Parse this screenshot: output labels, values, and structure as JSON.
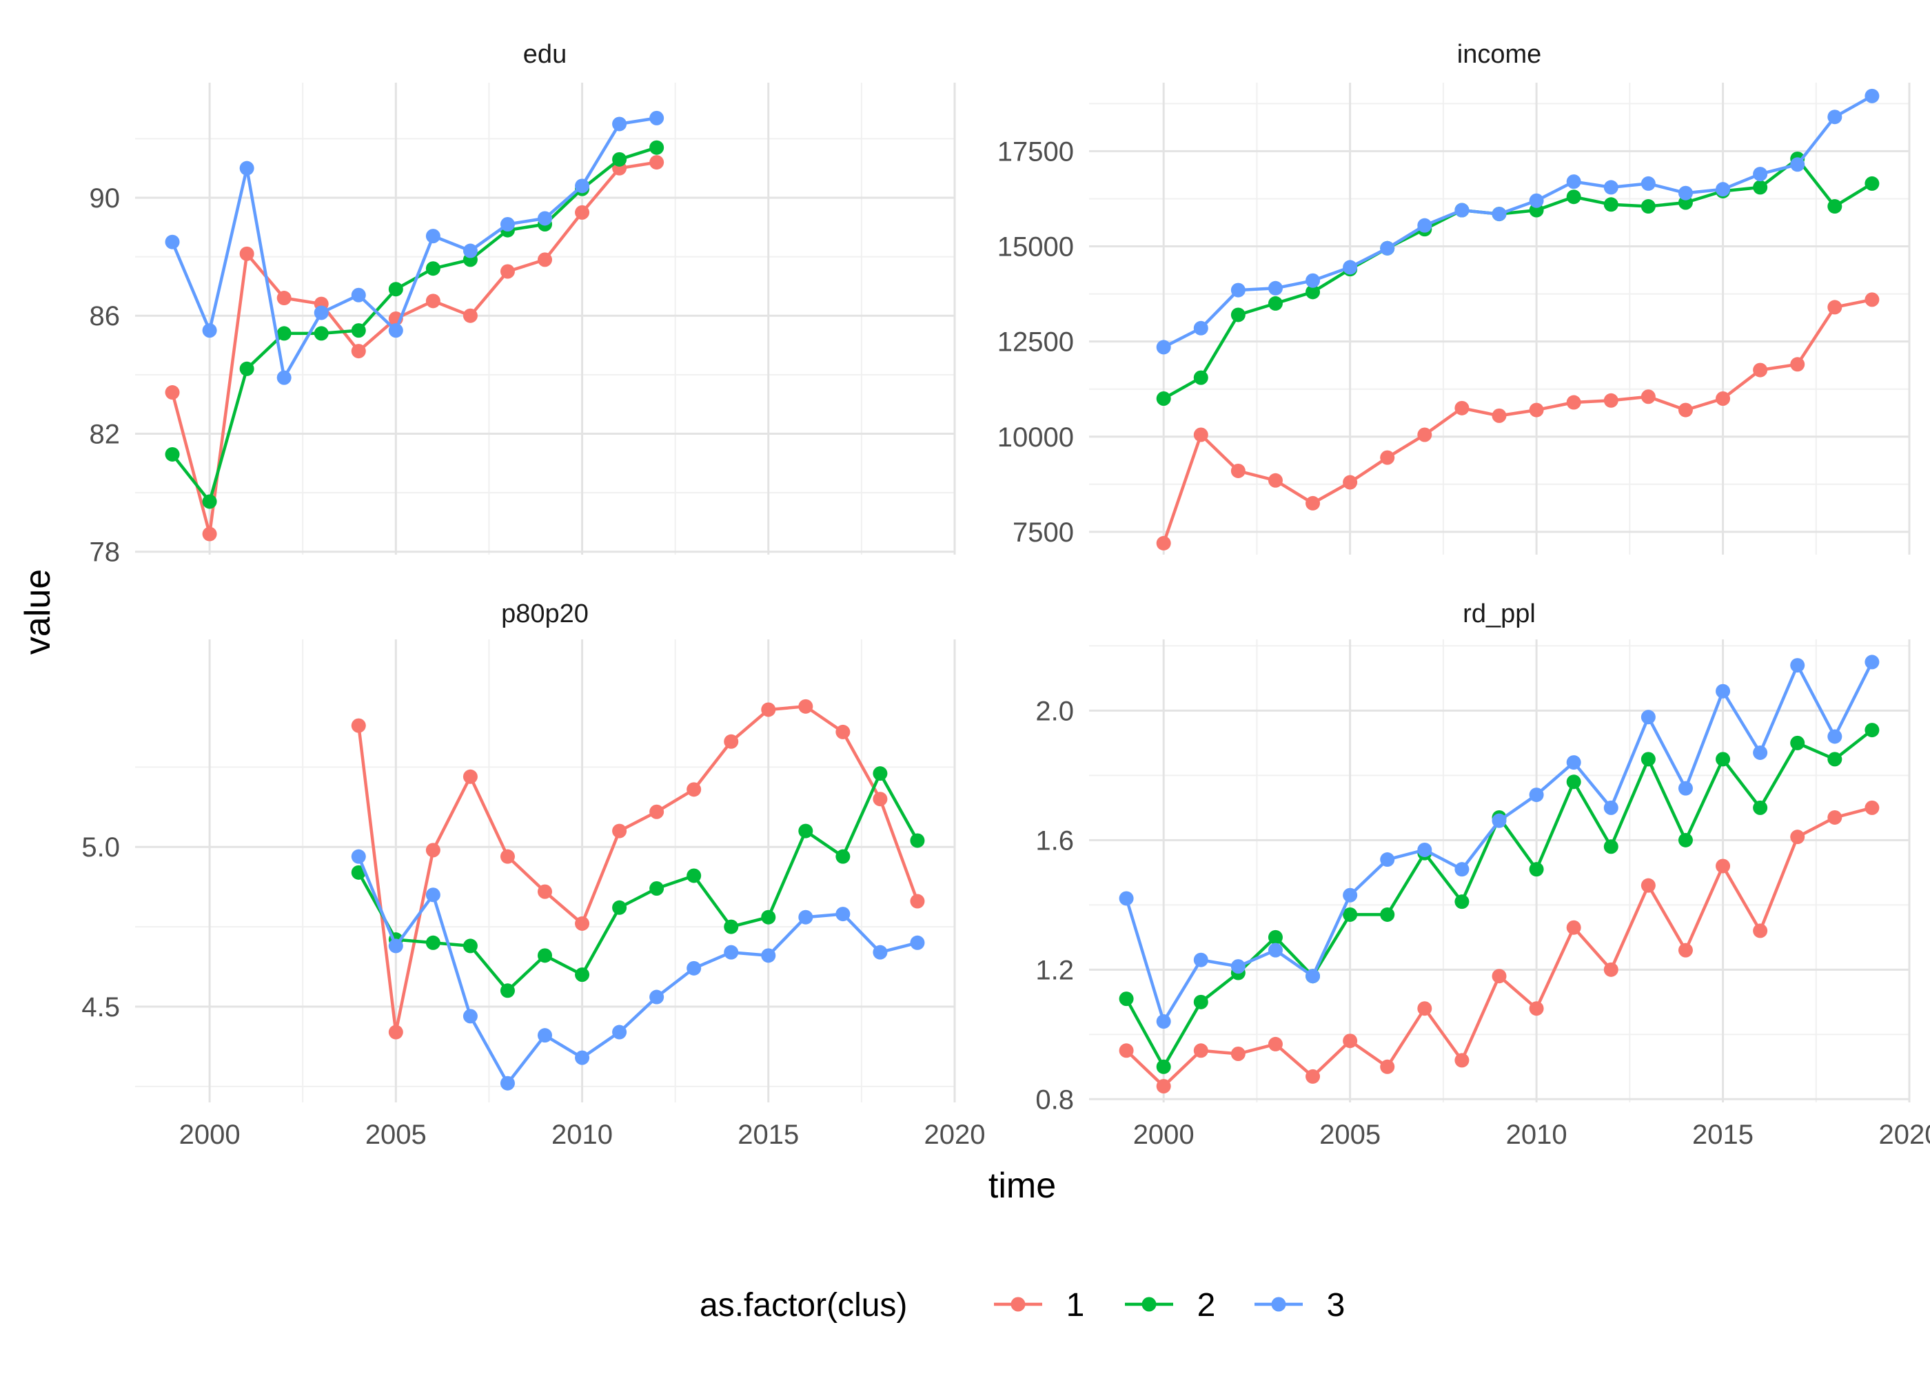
{
  "chart_data": {
    "type": "line",
    "facet_layout": "2x2",
    "xlabel": "time",
    "ylabel": "value",
    "xlim": [
      1998,
      2020
    ],
    "x_ticks": [
      2000,
      2005,
      2010,
      2015,
      2020
    ],
    "x_tick_labels": [
      "2000",
      "2005",
      "2010",
      "2015",
      "2020"
    ],
    "grid": true,
    "legend": {
      "title": "as.factor(clus)",
      "position": "bottom",
      "entries": [
        {
          "label": "1",
          "color": "#F8766D"
        },
        {
          "label": "2",
          "color": "#00BA38"
        },
        {
          "label": "3",
          "color": "#619CFF"
        }
      ]
    },
    "panels": [
      {
        "title": "edu",
        "ylim": [
          77.9,
          93.9
        ],
        "y_ticks": [
          78,
          82,
          86,
          90
        ],
        "y_tick_labels": [
          "78",
          "82",
          "86",
          "90"
        ],
        "series": [
          {
            "name": "1",
            "color": "#F8766D",
            "x": [
              1999,
              2000,
              2001,
              2002,
              2003,
              2004,
              2005,
              2006,
              2007,
              2008,
              2009,
              2010,
              2011,
              2012
            ],
            "y": [
              83.4,
              78.6,
              88.1,
              86.6,
              86.4,
              84.8,
              85.9,
              86.5,
              86.0,
              87.5,
              87.9,
              89.5,
              91.0,
              91.2
            ]
          },
          {
            "name": "2",
            "color": "#00BA38",
            "x": [
              1999,
              2000,
              2001,
              2002,
              2003,
              2004,
              2005,
              2006,
              2007,
              2008,
              2009,
              2010,
              2011,
              2012
            ],
            "y": [
              81.3,
              79.7,
              84.2,
              85.4,
              85.4,
              85.5,
              86.9,
              87.6,
              87.9,
              88.9,
              89.1,
              90.3,
              91.3,
              91.7
            ]
          },
          {
            "name": "3",
            "color": "#619CFF",
            "x": [
              1999,
              2000,
              2001,
              2002,
              2003,
              2004,
              2005,
              2006,
              2007,
              2008,
              2009,
              2010,
              2011,
              2012
            ],
            "y": [
              88.5,
              85.5,
              91.0,
              83.9,
              86.1,
              86.7,
              85.5,
              88.7,
              88.2,
              89.1,
              89.3,
              90.4,
              92.5,
              92.7
            ]
          }
        ]
      },
      {
        "title": "income",
        "ylim": [
          6900,
          19300
        ],
        "y_ticks": [
          7500,
          10000,
          12500,
          15000,
          17500
        ],
        "y_tick_labels": [
          "7500",
          "10000",
          "12500",
          "15000",
          "17500"
        ],
        "series": [
          {
            "name": "1",
            "color": "#F8766D",
            "x": [
              2000,
              2001,
              2002,
              2003,
              2004,
              2005,
              2006,
              2007,
              2008,
              2009,
              2010,
              2011,
              2012,
              2013,
              2014,
              2015,
              2016,
              2017,
              2018,
              2019
            ],
            "y": [
              7200,
              10050,
              9100,
              8850,
              8250,
              8800,
              9450,
              10050,
              10750,
              10550,
              10700,
              10900,
              10950,
              11050,
              10700,
              11000,
              11750,
              11900,
              13400,
              13600
            ]
          },
          {
            "name": "2",
            "color": "#00BA38",
            "x": [
              2000,
              2001,
              2002,
              2003,
              2004,
              2005,
              2006,
              2007,
              2008,
              2009,
              2010,
              2011,
              2012,
              2013,
              2014,
              2015,
              2016,
              2017,
              2018,
              2019
            ],
            "y": [
              11000,
              11550,
              13200,
              13500,
              13800,
              14400,
              14950,
              15450,
              15950,
              15850,
              15950,
              16300,
              16100,
              16050,
              16150,
              16450,
              16550,
              17300,
              16050,
              16650
            ]
          },
          {
            "name": "3",
            "color": "#619CFF",
            "x": [
              2000,
              2001,
              2002,
              2003,
              2004,
              2005,
              2006,
              2007,
              2008,
              2009,
              2010,
              2011,
              2012,
              2013,
              2014,
              2015,
              2016,
              2017,
              2018,
              2019
            ],
            "y": [
              12350,
              12850,
              13850,
              13900,
              14100,
              14450,
              14950,
              15550,
              15950,
              15850,
              16200,
              16700,
              16550,
              16650,
              16400,
              16500,
              16900,
              17150,
              18400,
              18950
            ]
          }
        ]
      },
      {
        "title": "p80p20",
        "ylim": [
          4.2,
          5.65
        ],
        "y_ticks": [
          4.5,
          5.0
        ],
        "y_tick_labels": [
          "4.5",
          "5.0"
        ],
        "series": [
          {
            "name": "1",
            "color": "#F8766D",
            "x": [
              2004,
              2005,
              2006,
              2007,
              2008,
              2009,
              2010,
              2011,
              2012,
              2013,
              2014,
              2015,
              2016,
              2017,
              2018,
              2019
            ],
            "y": [
              5.38,
              4.42,
              4.99,
              5.22,
              4.97,
              4.86,
              4.76,
              5.05,
              5.11,
              5.18,
              5.33,
              5.43,
              5.44,
              5.36,
              5.15,
              4.83
            ]
          },
          {
            "name": "2",
            "color": "#00BA38",
            "x": [
              2004,
              2005,
              2006,
              2007,
              2008,
              2009,
              2010,
              2011,
              2012,
              2013,
              2014,
              2015,
              2016,
              2017,
              2018,
              2019
            ],
            "y": [
              4.92,
              4.71,
              4.7,
              4.69,
              4.55,
              4.66,
              4.6,
              4.81,
              4.87,
              4.91,
              4.75,
              4.78,
              5.05,
              4.97,
              5.23,
              5.02
            ]
          },
          {
            "name": "3",
            "color": "#619CFF",
            "x": [
              2004,
              2005,
              2006,
              2007,
              2008,
              2009,
              2010,
              2011,
              2012,
              2013,
              2014,
              2015,
              2016,
              2017,
              2018,
              2019
            ],
            "y": [
              4.97,
              4.69,
              4.85,
              4.47,
              4.26,
              4.41,
              4.34,
              4.42,
              4.53,
              4.62,
              4.67,
              4.66,
              4.78,
              4.79,
              4.67,
              4.7
            ]
          }
        ]
      },
      {
        "title": "rd_ppl",
        "ylim": [
          0.79,
          2.22
        ],
        "y_ticks": [
          0.8,
          1.2,
          1.6,
          2.0
        ],
        "y_tick_labels": [
          "0.8",
          "1.2",
          "1.6",
          "2.0"
        ],
        "series": [
          {
            "name": "1",
            "color": "#F8766D",
            "x": [
              1999,
              2000,
              2001,
              2002,
              2003,
              2004,
              2005,
              2006,
              2007,
              2008,
              2009,
              2010,
              2011,
              2012,
              2013,
              2014,
              2015,
              2016,
              2017,
              2018,
              2019
            ],
            "y": [
              0.95,
              0.84,
              0.95,
              0.94,
              0.97,
              0.87,
              0.98,
              0.9,
              1.08,
              0.92,
              1.18,
              1.08,
              1.33,
              1.2,
              1.46,
              1.26,
              1.52,
              1.32,
              1.61,
              1.67,
              1.7
            ]
          },
          {
            "name": "2",
            "color": "#00BA38",
            "x": [
              1999,
              2000,
              2001,
              2002,
              2003,
              2004,
              2005,
              2006,
              2007,
              2008,
              2009,
              2010,
              2011,
              2012,
              2013,
              2014,
              2015,
              2016,
              2017,
              2018,
              2019
            ],
            "y": [
              1.11,
              0.9,
              1.1,
              1.19,
              1.3,
              1.18,
              1.37,
              1.37,
              1.56,
              1.41,
              1.67,
              1.51,
              1.78,
              1.58,
              1.85,
              1.6,
              1.85,
              1.7,
              1.9,
              1.85,
              1.94
            ]
          },
          {
            "name": "3",
            "color": "#619CFF",
            "x": [
              1999,
              2000,
              2001,
              2002,
              2003,
              2004,
              2005,
              2006,
              2007,
              2008,
              2009,
              2010,
              2011,
              2012,
              2013,
              2014,
              2015,
              2016,
              2017,
              2018,
              2019
            ],
            "y": [
              1.42,
              1.04,
              1.23,
              1.21,
              1.26,
              1.18,
              1.43,
              1.54,
              1.57,
              1.51,
              1.66,
              1.74,
              1.84,
              1.7,
              1.98,
              1.76,
              2.06,
              1.87,
              2.14,
              1.92,
              2.15
            ]
          }
        ]
      }
    ]
  }
}
